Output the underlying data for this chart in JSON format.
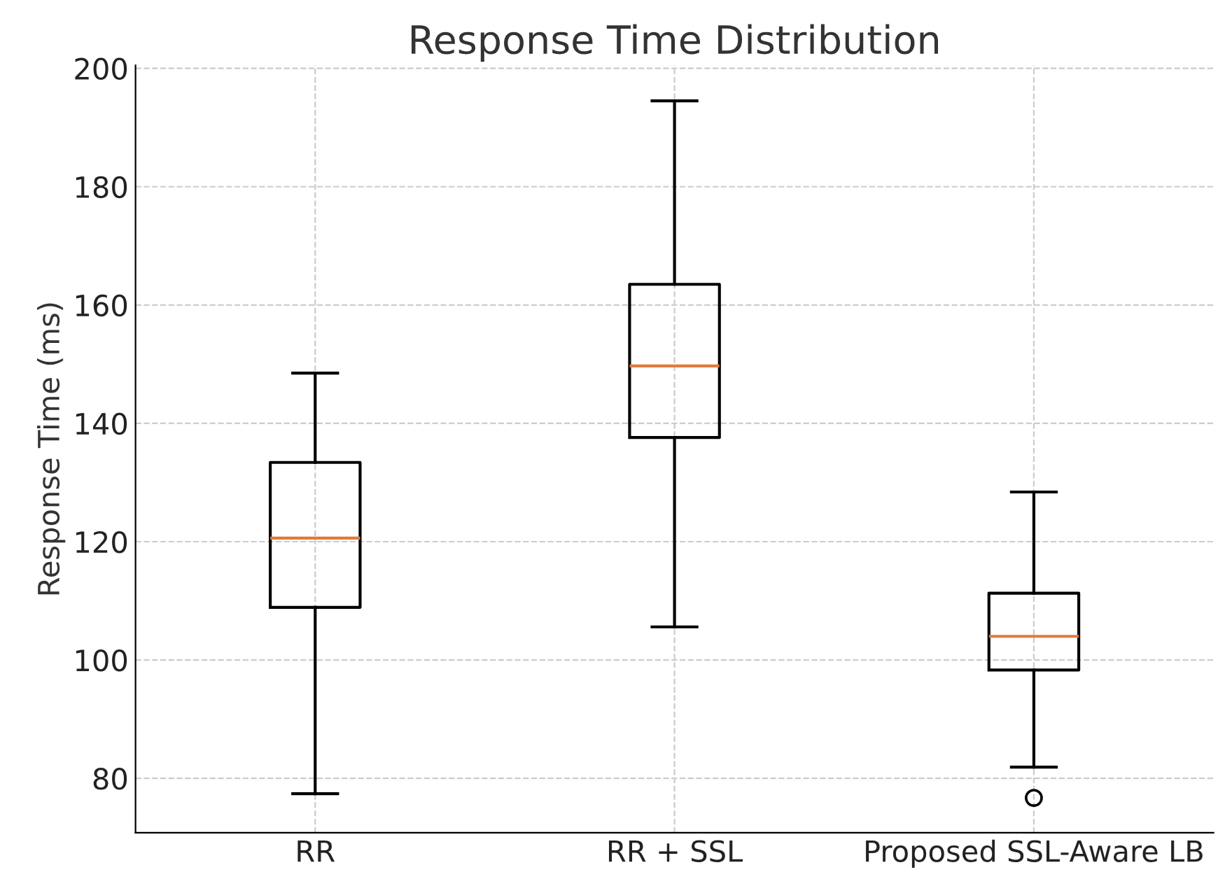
{
  "chart_data": {
    "type": "box",
    "title": "Response Time Distribution",
    "ylabel": "Response Time (ms)",
    "categories": [
      "RR",
      "RR + SSL",
      "Proposed SSL-Aware LB"
    ],
    "boxes": [
      {
        "low": 77.4,
        "q1": 108.9,
        "median": 120.6,
        "q3": 133.4,
        "high": 148.5
      },
      {
        "low": 105.6,
        "q1": 137.6,
        "median": 149.7,
        "q3": 163.5,
        "high": 194.5
      },
      {
        "low": 81.9,
        "q1": 98.3,
        "median": 104.0,
        "q3": 111.3,
        "high": 128.4,
        "outliers": [
          76.7
        ]
      }
    ],
    "color": "#000000",
    "ylim": [
      70.8,
      200.5
    ],
    "yticks": [
      80,
      100,
      120,
      140,
      160,
      180,
      200
    ],
    "grid": true
  }
}
